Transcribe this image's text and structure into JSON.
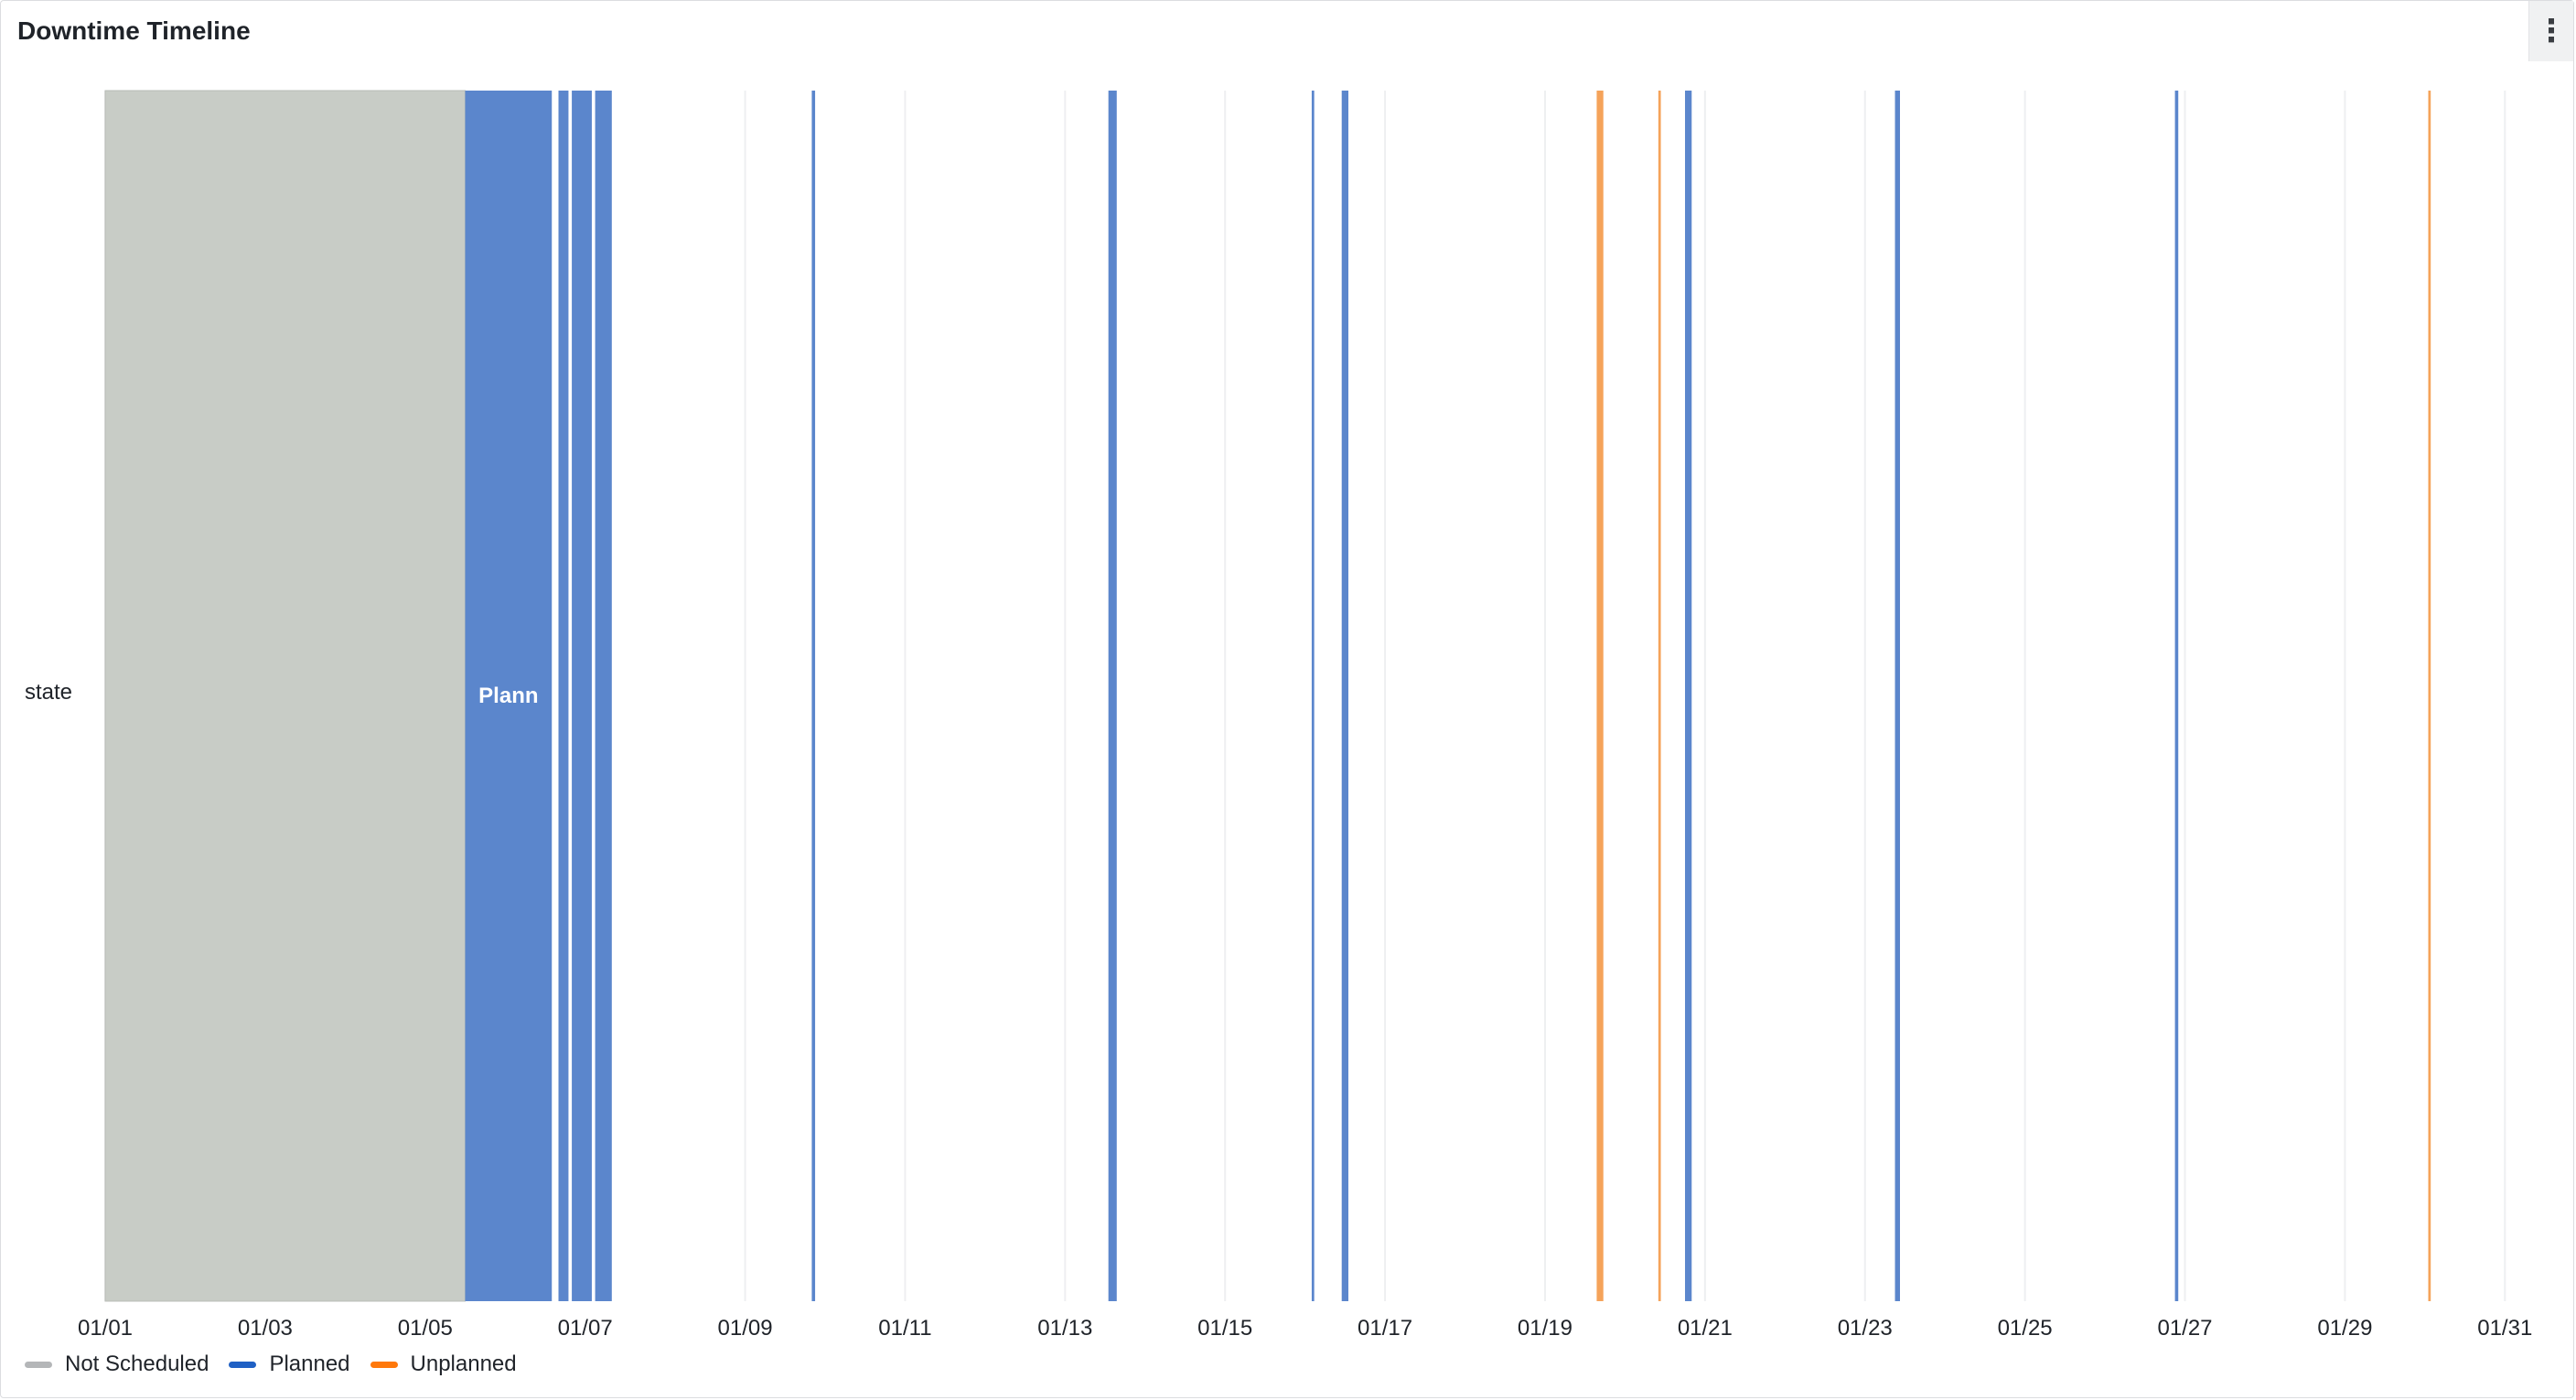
{
  "panel": {
    "title": "Downtime Timeline",
    "menu_icon": "more-vertical-icon"
  },
  "colors": {
    "not_scheduled": "#c8ccc6",
    "planned": "#5b86cc",
    "unplanned": "#f5a35a",
    "legend_not_scheduled": "#b4b6b8",
    "legend_planned": "#1f60c4",
    "legend_unplanned": "#ff780a",
    "grid": "#eeeff1"
  },
  "chart_data": {
    "type": "state-timeline",
    "title": "Downtime Timeline",
    "row_label": "state",
    "x_range": [
      "01/01 00:00",
      "01/31 12:00"
    ],
    "x_ticks": [
      "01/01",
      "01/03",
      "01/05",
      "01/07",
      "01/09",
      "01/11",
      "01/13",
      "01/15",
      "01/17",
      "01/19",
      "01/21",
      "01/23",
      "01/25",
      "01/27",
      "01/29",
      "01/31"
    ],
    "legend": [
      {
        "name": "Not Scheduled",
        "state": "not_scheduled"
      },
      {
        "name": "Planned",
        "state": "planned"
      },
      {
        "name": "Unplanned",
        "state": "unplanned"
      }
    ],
    "segments": [
      {
        "state": "not_scheduled",
        "start": "01/01 00:00",
        "end": "01/05 12:00"
      },
      {
        "state": "planned",
        "start": "01/05 12:00",
        "end": "01/06 14:00",
        "label": "Plann"
      },
      {
        "state": "planned",
        "start": "01/06 16:00",
        "end": "01/06 19:00"
      },
      {
        "state": "planned",
        "start": "01/06 20:00",
        "end": "01/07 02:00"
      },
      {
        "state": "planned",
        "start": "01/07 03:00",
        "end": "01/07 08:00"
      },
      {
        "state": "planned",
        "start": "01/09 20:00",
        "end": "01/09 21:00"
      },
      {
        "state": "planned",
        "start": "01/13 13:00",
        "end": "01/13 15:30"
      },
      {
        "state": "planned",
        "start": "01/16 02:00",
        "end": "01/16 02:45"
      },
      {
        "state": "planned",
        "start": "01/16 11:00",
        "end": "01/16 13:00"
      },
      {
        "state": "unplanned",
        "start": "01/19 15:30",
        "end": "01/19 17:30"
      },
      {
        "state": "unplanned",
        "start": "01/20 10:00",
        "end": "01/20 10:45"
      },
      {
        "state": "planned",
        "start": "01/20 18:00",
        "end": "01/20 20:00"
      },
      {
        "state": "planned",
        "start": "01/23 09:00",
        "end": "01/23 10:30"
      },
      {
        "state": "planned",
        "start": "01/26 21:00",
        "end": "01/26 22:00"
      },
      {
        "state": "unplanned",
        "start": "01/30 01:00",
        "end": "01/30 01:45"
      }
    ]
  }
}
